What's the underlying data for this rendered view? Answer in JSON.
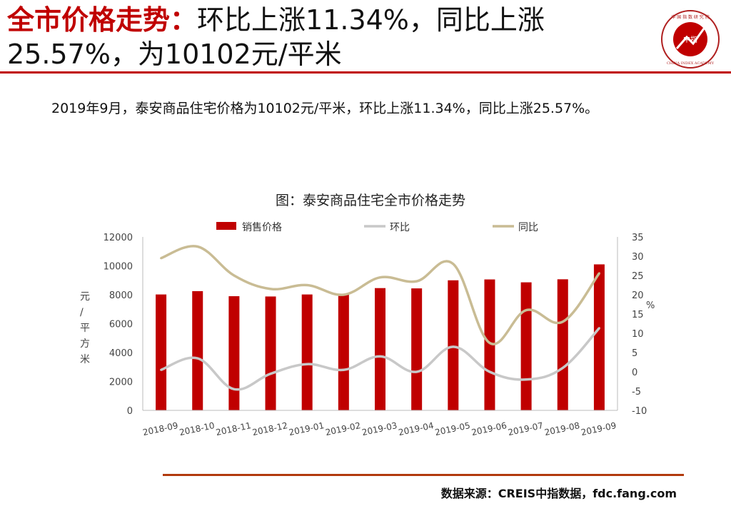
{
  "header": {
    "title_highlight": "全市价格走势：",
    "title_rest": "环比上涨11.34%，同比上涨25.57%，为10102元/平米"
  },
  "logo": {
    "alt": "China Index Academy seal",
    "center_text": "中指",
    "ring_text": "中 国 指 数 研 究 院",
    "en_text": "CHINA INDEX ACADEMY"
  },
  "description": "2019年9月，泰安商品住宅价格为10102元/平米，环比上涨11.34%，同比上涨25.57%。",
  "chart_data": {
    "type": "bar",
    "title": "图：泰安商品住宅全市价格走势",
    "categories": [
      "2018-09",
      "2018-10",
      "2018-11",
      "2018-12",
      "2019-01",
      "2019-02",
      "2019-03",
      "2019-04",
      "2019-05",
      "2019-06",
      "2019-07",
      "2019-08",
      "2019-09"
    ],
    "series": [
      {
        "name": "销售价格",
        "type": "bar",
        "axis": "left",
        "color": "#c00000",
        "values": [
          8020,
          8250,
          7900,
          7880,
          8020,
          8000,
          8460,
          8440,
          9000,
          9060,
          8860,
          9070,
          10102
        ]
      },
      {
        "name": "环比",
        "type": "line",
        "axis": "right",
        "color": "#c8c8c8",
        "values": [
          0.5,
          3.5,
          -4.5,
          -0.5,
          2,
          0.5,
          4,
          0,
          6.5,
          0,
          -2,
          1,
          11.34
        ]
      },
      {
        "name": "同比",
        "type": "line",
        "axis": "right",
        "color": "#c9bc94",
        "values": [
          29.5,
          32.5,
          25,
          21.5,
          22.5,
          20,
          24.5,
          23.5,
          28,
          7.5,
          16,
          13,
          25.57
        ]
      }
    ],
    "ylabel": "元/平方米",
    "y2label": "%",
    "ylim": [
      0,
      12000
    ],
    "yticks": [
      0,
      2000,
      4000,
      6000,
      8000,
      10000,
      12000
    ],
    "y2lim": [
      -10,
      35
    ],
    "y2ticks": [
      -10,
      -5,
      0,
      5,
      10,
      15,
      20,
      25,
      30,
      35
    ],
    "legend_position": "top",
    "grid": false
  },
  "source": "数据来源：CREIS中指数据，fdc.fang.com"
}
